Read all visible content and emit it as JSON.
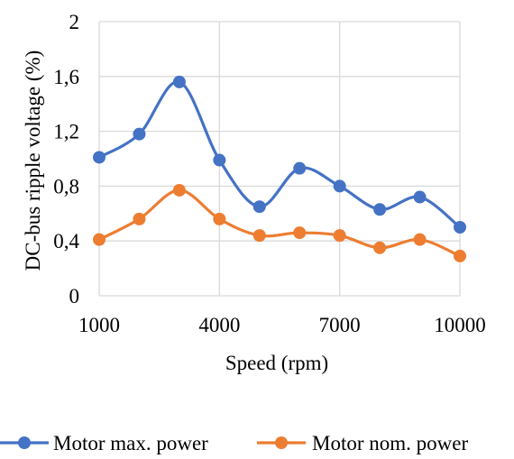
{
  "chart_data": {
    "type": "line",
    "xlabel": "Speed (rpm)",
    "ylabel": "DC-bus ripple voltage (%)",
    "xlim": [
      1000,
      10000
    ],
    "ylim": [
      0,
      2
    ],
    "x_ticks": [
      1000,
      4000,
      7000,
      10000
    ],
    "x_tick_labels": [
      "1000",
      "4000",
      "7000",
      "10000"
    ],
    "y_ticks": [
      0,
      0.4,
      0.8,
      1.2,
      1.6,
      2
    ],
    "y_tick_labels": [
      "0",
      "0,4",
      "0,8",
      "1,2",
      "1,6",
      "2"
    ],
    "grid": "vertical and horizontal",
    "legend_position": "bottom",
    "x": [
      1000,
      2000,
      3000,
      4000,
      5000,
      6000,
      7000,
      8000,
      9000,
      10000
    ],
    "series": [
      {
        "name": "Motor max. power",
        "color": "#4472C4",
        "values": [
          1.01,
          1.18,
          1.56,
          0.99,
          0.65,
          0.93,
          0.8,
          0.63,
          0.72,
          0.5
        ]
      },
      {
        "name": "Motor nom. power",
        "color": "#ED7D31",
        "values": [
          0.41,
          0.56,
          0.77,
          0.56,
          0.44,
          0.46,
          0.44,
          0.35,
          0.41,
          0.29
        ]
      }
    ]
  }
}
